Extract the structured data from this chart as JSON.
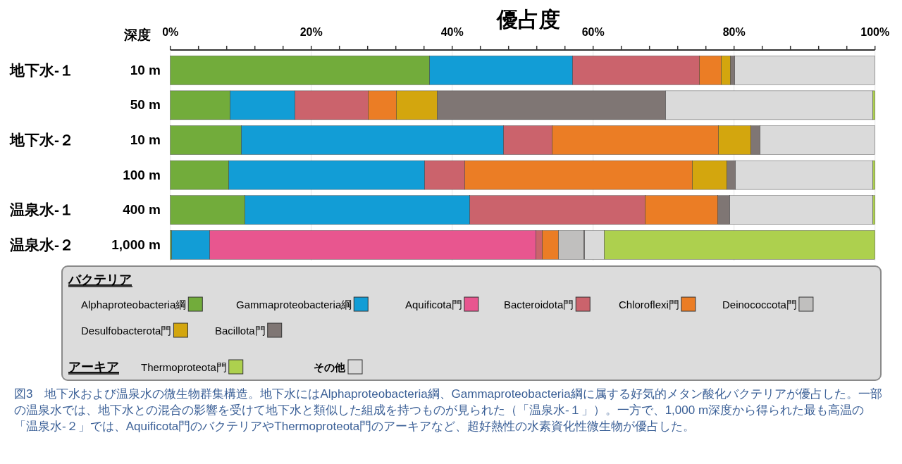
{
  "chart_data": {
    "type": "bar",
    "orientation": "horizontal",
    "stacked": true,
    "title": "優占度",
    "categories": [
      "10 m",
      "50 m",
      "10 m",
      "100 m",
      "400 m",
      "1,000 m"
    ],
    "series": [
      {
        "name": "Alphaproteobacteria綱",
        "color": "#72ac3b",
        "values": [
          36.8,
          8.5,
          10.1,
          8.3,
          10.6,
          0.2
        ]
      },
      {
        "name": "Gammaproteobacteria綱",
        "color": "#129dd6",
        "values": [
          20.3,
          9.2,
          37.2,
          27.8,
          31.9,
          5.4
        ]
      },
      {
        "name": "Aquificota門",
        "color": "#e8568f",
        "values": [
          null,
          null,
          null,
          null,
          null,
          46.3
        ]
      },
      {
        "name": "Bacteroidota門",
        "color": "#cb636c",
        "values": [
          18.0,
          10.4,
          6.9,
          5.7,
          24.9,
          0.9
        ]
      },
      {
        "name": "Chloroflexi門",
        "color": "#eb7d25",
        "values": [
          3.1,
          4.0,
          23.6,
          32.3,
          10.3,
          2.3
        ]
      },
      {
        "name": "Deinococcota門",
        "color": "#c0bfbe",
        "values": [
          null,
          null,
          null,
          null,
          null,
          3.6
        ]
      },
      {
        "name": "Desulfobacterota門",
        "color": "#d3a60e",
        "values": [
          1.3,
          5.8,
          4.6,
          4.9,
          null,
          null
        ]
      },
      {
        "name": "Bacillota門",
        "color": "#7f7674",
        "values": [
          0.6,
          32.4,
          1.3,
          1.2,
          1.7,
          0.1
        ]
      },
      {
        "name": "その他",
        "color": "#dadada",
        "values": [
          19.9,
          29.4,
          16.3,
          19.5,
          20.3,
          2.8
        ]
      },
      {
        "name": "Thermoproteota門",
        "color": "#add04e",
        "values": [
          null,
          0.3,
          null,
          0.3,
          0.3,
          38.4
        ]
      }
    ],
    "xlim": [
      0,
      100
    ],
    "xticks": [
      {
        "value": 0,
        "label": "0%"
      },
      {
        "value": 4,
        "label": null
      },
      {
        "value": 8,
        "label": null
      },
      {
        "value": 12,
        "label": null
      },
      {
        "value": 16,
        "label": null
      },
      {
        "value": 20,
        "label": "20%"
      },
      {
        "value": 24,
        "label": null
      },
      {
        "value": 28,
        "label": null
      },
      {
        "value": 32,
        "label": null
      },
      {
        "value": 36,
        "label": null
      },
      {
        "value": 40,
        "label": "40%"
      },
      {
        "value": 44,
        "label": null
      },
      {
        "value": 48,
        "label": null
      },
      {
        "value": 52,
        "label": null
      },
      {
        "value": 56,
        "label": null
      },
      {
        "value": 60,
        "label": "60%"
      },
      {
        "value": 64,
        "label": null
      },
      {
        "value": 68,
        "label": null
      },
      {
        "value": 72,
        "label": null
      },
      {
        "value": 76,
        "label": null
      },
      {
        "value": 80,
        "label": "80%"
      },
      {
        "value": 84,
        "label": null
      },
      {
        "value": 88,
        "label": null
      },
      {
        "value": 92,
        "label": null
      },
      {
        "value": 96,
        "label": null
      },
      {
        "value": 100,
        "label": "100%"
      }
    ],
    "grid": "x",
    "legend": "bottom",
    "annotations": [
      "深度",
      "地下水-１",
      "地下水-２",
      "温泉水-１",
      "温泉水-２",
      "バクテリア",
      "アーキア",
      "図3　地下水および温泉水の微生物群集構造。地下水にはAlphaproteobacteria綱、Gammaproteobacteria綱に属する好気的メタン酸化バクテリアが優占した。一部の温泉水では、地下水との混合の影響を受けて地下水と類似した組成を持つものが見られた（「温泉水-１」）。一方で、1,000 m深度から得られた最も高温の「温泉水-２」では、Aquificota門のバクテリアやThermoproteota門のアーキアなど、超好熱性の水素資化性微生物が優占した。"
    ]
  }
}
